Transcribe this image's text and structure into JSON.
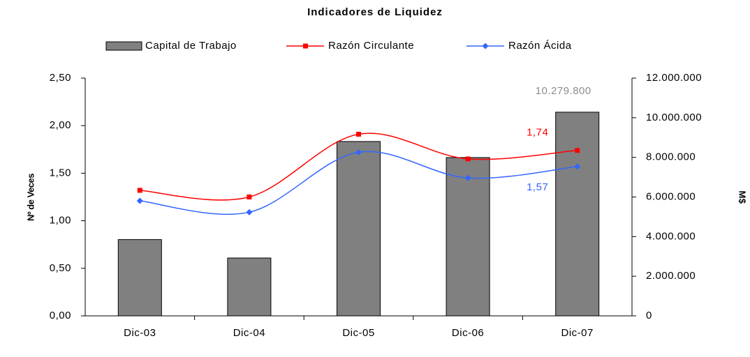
{
  "chart_data": {
    "type": "bar_line",
    "title": "Indicadores de Liquidez",
    "y_label": "Nº de Veces",
    "y2_label": "M$",
    "categories": [
      "Dic-03",
      "Dic-04",
      "Dic-05",
      "Dic-06",
      "Dic-07"
    ],
    "series": [
      {
        "name": "Capital de Trabajo",
        "type": "bar",
        "axis": "y2",
        "color": "#808080",
        "values": [
          3850000,
          2920000,
          8800000,
          7990000,
          10279800
        ],
        "value_labels": [
          null,
          null,
          null,
          null,
          "10.279.800"
        ],
        "label_color": "#8c8c8c"
      },
      {
        "name": "Razón Circulante",
        "type": "line",
        "color": "#ff0000",
        "marker": "square",
        "values": [
          1.32,
          1.25,
          1.91,
          1.65,
          1.74
        ],
        "value_labels": [
          null,
          null,
          null,
          null,
          "1,74"
        ],
        "label_color": "#ff0000"
      },
      {
        "name": "Razón Ácida",
        "type": "line",
        "color": "#3366ff",
        "marker": "diamond",
        "values": [
          1.21,
          1.09,
          1.72,
          1.45,
          1.57
        ],
        "value_labels": [
          null,
          null,
          null,
          null,
          "1,57"
        ],
        "label_color": "#3366ff"
      }
    ],
    "ylim": [
      0,
      2.5
    ],
    "yticks": [
      {
        "value": 0,
        "label": "0,00"
      },
      {
        "value": 0.5,
        "label": "0,50"
      },
      {
        "value": 1,
        "label": "1,00"
      },
      {
        "value": 1.5,
        "label": "1,50"
      },
      {
        "value": 2,
        "label": "2,00"
      },
      {
        "value": 2.5,
        "label": "2,50"
      }
    ],
    "y2lim": [
      0,
      12000000
    ],
    "y2ticks": [
      0,
      {
        "value": 2000000,
        "label": "2.000.000"
      },
      {
        "value": 4000000,
        "label": "4.000.000"
      },
      {
        "value": 6000000,
        "label": "6.000.000"
      },
      {
        "value": 8000000,
        "label": "8.000.000"
      },
      {
        "value": 10000000,
        "label": "10.000.000"
      },
      {
        "value": 12000000,
        "label": "12.000.000"
      }
    ],
    "smooth": true,
    "grid": false,
    "legend": "top"
  }
}
